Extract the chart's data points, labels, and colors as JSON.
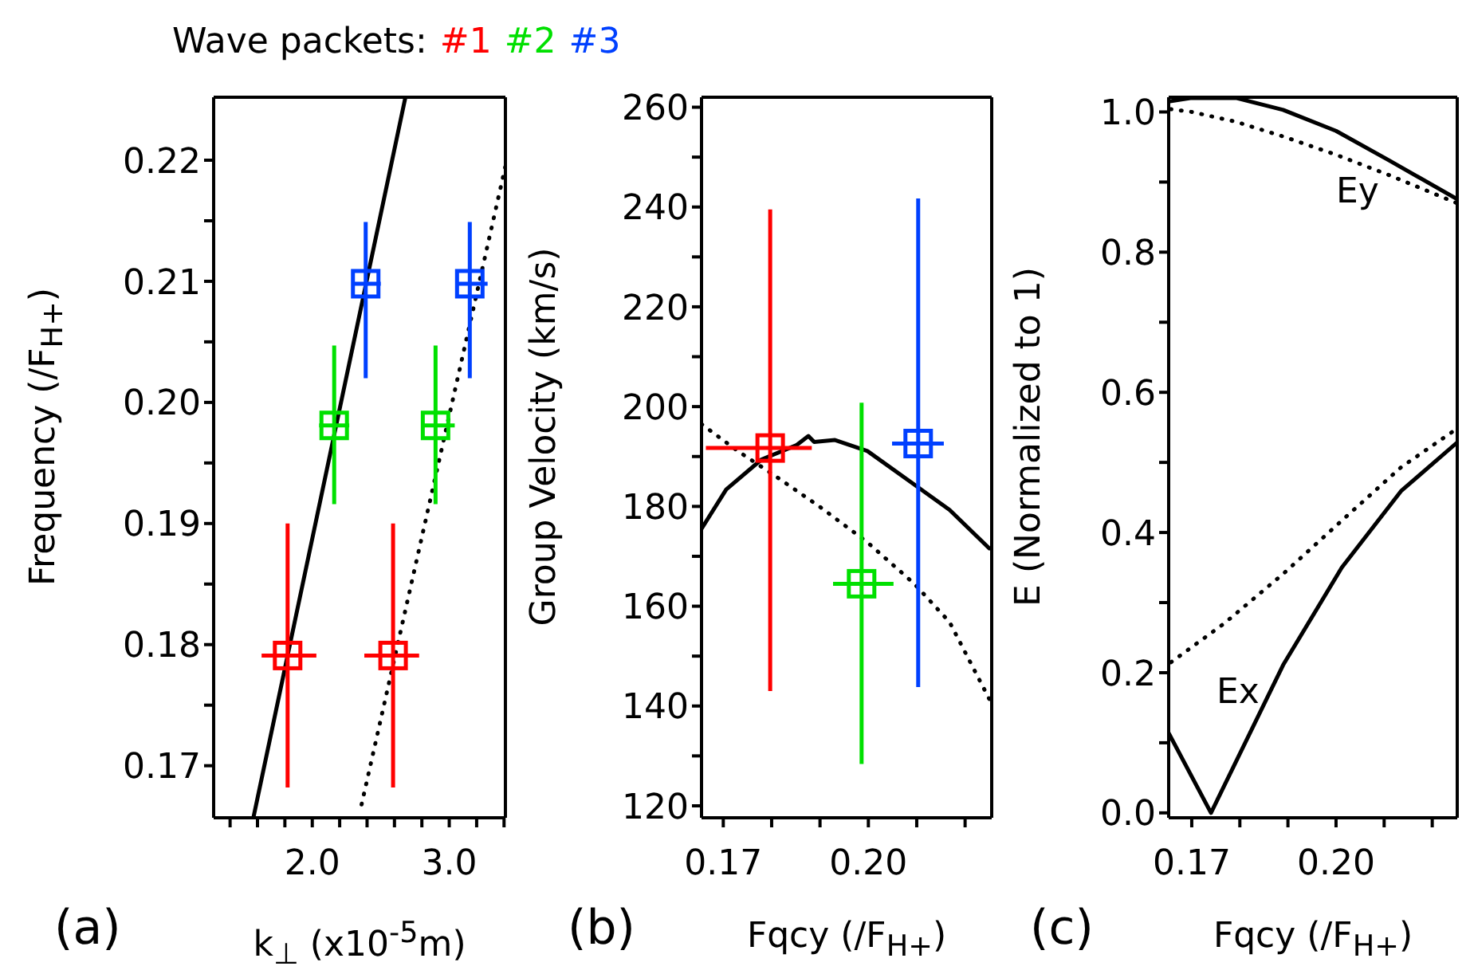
{
  "chart_data": [
    {
      "type": "scatter",
      "legend_title": "Wave packets:",
      "legend": "top",
      "xlabel": "k$_{⊥}$  (x10$^{-5}$m)",
      "ylabel": "Frequency (/F$_{H+}$)",
      "annotations": [
        "(a)"
      ],
      "xlim": [
        1.28,
        3.41
      ],
      "xticks": [
        {
          "value": 1.4,
          "label": null
        },
        {
          "value": 1.6,
          "label": null
        },
        {
          "value": 1.8,
          "label": null
        },
        {
          "value": 2,
          "label": "2.0"
        },
        {
          "value": 2.2,
          "label": null
        },
        {
          "value": 2.4,
          "label": null
        },
        {
          "value": 2.6,
          "label": null
        },
        {
          "value": 2.8,
          "label": null
        },
        {
          "value": 3,
          "label": "3.0"
        },
        {
          "value": 3.2,
          "label": null
        },
        {
          "value": 3.4,
          "label": null
        }
      ],
      "ylim": [
        0.1657,
        0.2252
      ],
      "yticks": [
        0.17,
        {
          "value": 0.175,
          "label": null
        },
        0.18,
        {
          "value": 0.185,
          "label": null
        },
        0.19,
        {
          "value": 0.195,
          "label": null
        },
        {
          "value": 0.2,
          "label": "0.20"
        },
        {
          "value": 0.205,
          "label": null
        },
        0.21,
        {
          "value": 0.215,
          "label": null
        },
        0.22
      ],
      "series": [
        {
          "name": "#1",
          "color": "#ff0000",
          "marker": "square",
          "x": [
            1.82,
            2.59
          ],
          "values": [
            0.1791,
            0.1791
          ],
          "errors": [
            [
              0.1682,
              0.19
            ],
            [
              0.1682,
              0.19
            ]
          ],
          "xerrors": [
            [
              1.63,
              2.03
            ],
            [
              2.38,
              2.78
            ]
          ]
        },
        {
          "name": "#2",
          "color": "#00e000",
          "marker": "square",
          "x": [
            2.16,
            2.9
          ],
          "values": [
            0.1981,
            0.1981
          ],
          "errors": [
            [
              0.1916,
              0.2047
            ],
            [
              0.1916,
              0.2047
            ]
          ],
          "xerrors": [
            [
              2.05,
              2.27
            ],
            [
              2.8,
              3.04
            ]
          ]
        },
        {
          "name": "#3",
          "color": "#0040ff",
          "marker": "square",
          "x": [
            2.39,
            3.15
          ],
          "values": [
            0.2098,
            0.2098
          ],
          "errors": [
            [
              0.202,
              0.2149
            ],
            [
              0.202,
              0.2149
            ]
          ],
          "xerrors": [
            [
              2.29,
              2.5
            ],
            [
              3.05,
              3.28
            ]
          ]
        },
        {
          "type": "line",
          "color": "#000000",
          "line_style": "solid",
          "x": [
            1.57,
            2.68
          ],
          "values": [
            0.1657,
            0.2252
          ]
        },
        {
          "type": "line",
          "color": "#000000",
          "line_style": "dotted",
          "x": [
            2.36,
            3.41
          ],
          "values": [
            0.1668,
            0.2195
          ]
        }
      ]
    },
    {
      "type": "scatter",
      "xlabel": "Fqcy (/F$_{H+}$)",
      "ylabel": "Group Velocity (km/s)",
      "annotations": [
        "(b)"
      ],
      "xlim": [
        0.1655,
        0.2255
      ],
      "xticks": [
        0.17,
        {
          "value": 0.18,
          "label": null
        },
        {
          "value": 0.19,
          "label": null
        },
        {
          "value": 0.2,
          "label": "0.20"
        },
        {
          "value": 0.21,
          "label": null
        },
        {
          "value": 0.22,
          "label": null
        }
      ],
      "ylim": [
        117.6,
        262
      ],
      "yticks": [
        120,
        {
          "value": 130,
          "label": null
        },
        140,
        {
          "value": 150,
          "label": null
        },
        160,
        {
          "value": 170,
          "label": null
        },
        180,
        {
          "value": 190,
          "label": null
        },
        200,
        {
          "value": 210,
          "label": null
        },
        220,
        {
          "value": 230,
          "label": null
        },
        240,
        {
          "value": 250,
          "label": null
        },
        260
      ],
      "series": [
        {
          "color": "#ff0000",
          "marker": "square",
          "x": [
            0.1797
          ],
          "values": [
            191.7
          ],
          "errors": [
            [
              143,
              239.5
            ]
          ],
          "xerrors": [
            [
              0.1664,
              0.1883
            ]
          ]
        },
        {
          "color": "#00e000",
          "marker": "square",
          "x": [
            0.1986
          ],
          "values": [
            164.5
          ],
          "errors": [
            [
              128.4,
              200.8
            ]
          ],
          "xerrors": [
            [
              0.1927,
              0.2052
            ]
          ]
        },
        {
          "color": "#0040ff",
          "marker": "square",
          "x": [
            0.2103
          ],
          "values": [
            192.6
          ],
          "errors": [
            [
              143.8,
              241.7
            ]
          ],
          "xerrors": [
            [
              0.2049,
              0.2156
            ]
          ]
        },
        {
          "type": "line",
          "color": "#000000",
          "line_style": "solid",
          "x": [
            0.1655,
            0.1706,
            0.1779,
            0.1852,
            0.1876,
            0.1888,
            0.1931,
            0.1998,
            0.2083,
            0.2168,
            0.225
          ],
          "values": [
            175.5,
            183.4,
            189.4,
            192.3,
            194.1,
            192.9,
            193.3,
            191.1,
            185.2,
            179.3,
            171.6
          ]
        },
        {
          "type": "line",
          "color": "#000000",
          "line_style": "dotted",
          "x": [
            0.1655,
            0.173,
            0.1803,
            0.19,
            0.1998,
            0.2095,
            0.2168,
            0.225
          ],
          "values": [
            196.5,
            191.1,
            186.4,
            179.9,
            172.8,
            164.5,
            156.8,
            141.4
          ]
        }
      ]
    },
    {
      "type": "line",
      "xlabel": "Fqcy (/F$_{H+}$)",
      "ylabel": "E (Normalized to 1)",
      "annotations": [
        "(c)",
        "Ey",
        "Ex"
      ],
      "xlim": [
        0.1652,
        0.2252
      ],
      "xticks": [
        0.17,
        {
          "value": 0.18,
          "label": null
        },
        {
          "value": 0.19,
          "label": null
        },
        {
          "value": 0.2,
          "label": "0.20"
        },
        {
          "value": 0.21,
          "label": null
        },
        {
          "value": 0.22,
          "label": null
        }
      ],
      "ylim": [
        -0.007,
        1.021
      ],
      "yticks": [
        {
          "value": 0,
          "label": "0.0"
        },
        {
          "value": 0.1,
          "label": null
        },
        {
          "value": 0.2,
          "label": "0.2"
        },
        {
          "value": 0.3,
          "label": null
        },
        {
          "value": 0.4,
          "label": "0.4"
        },
        {
          "value": 0.5,
          "label": null
        },
        {
          "value": 0.6,
          "label": "0.6"
        },
        {
          "value": 0.7,
          "label": null
        },
        {
          "value": 0.8,
          "label": "0.8"
        },
        {
          "value": 0.9,
          "label": null
        },
        {
          "value": 1,
          "label": "1.0"
        }
      ],
      "series": [
        {
          "color": "#000000",
          "line_style": "solid",
          "x": [
            0.1652,
            0.17,
            0.1792,
            0.189,
            0.2,
            0.211,
            0.2251
          ],
          "values": [
            1.015,
            1.02,
            1.02,
            1.003,
            0.973,
            0.931,
            0.876
          ]
        },
        {
          "color": "#000000",
          "line_style": "dotted",
          "x": [
            0.1656,
            0.17,
            0.1792,
            0.189,
            0.2,
            0.211,
            0.2251
          ],
          "values": [
            1.004,
            1,
            0.986,
            0.965,
            0.939,
            0.91,
            0.87
          ]
        },
        {
          "color": "#000000",
          "line_style": "solid",
          "x": [
            0.1652,
            0.174,
            0.189,
            0.2012,
            0.2135,
            0.2251
          ],
          "values": [
            0.114,
            0,
            0.211,
            0.35,
            0.459,
            0.528
          ]
        },
        {
          "color": "#000000",
          "line_style": "dotted",
          "x": [
            0.1657,
            0.1767,
            0.189,
            0.2012,
            0.2135,
            0.2251
          ],
          "values": [
            0.215,
            0.27,
            0.341,
            0.417,
            0.493,
            0.548
          ]
        }
      ]
    }
  ]
}
